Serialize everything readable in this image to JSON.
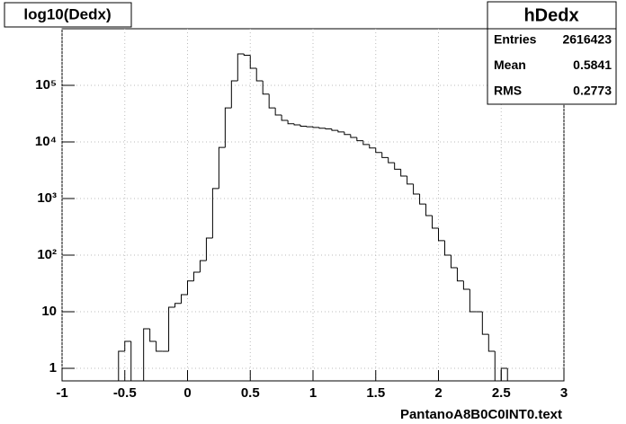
{
  "chart_data": {
    "type": "histogram",
    "title": "log10(Dedx)",
    "x_label": "PantanoA8B0C0INT0.text",
    "stats": {
      "name": "hDedx",
      "rows": [
        {
          "label": "Entries",
          "value": 2616423
        },
        {
          "label": "Mean",
          "value": 0.5841
        },
        {
          "label": "RMS",
          "value": 0.2773
        }
      ]
    },
    "bins": [
      -1,
      -0.95,
      -0.9,
      -0.85,
      -0.8,
      -0.75,
      -0.7,
      -0.65,
      -0.6,
      -0.55,
      -0.5,
      -0.45,
      -0.4,
      -0.35,
      -0.3,
      -0.25,
      -0.2,
      -0.15,
      -0.1,
      -0.05,
      0,
      0.05,
      0.1,
      0.15,
      0.2,
      0.25,
      0.3,
      0.35,
      0.4,
      0.45,
      0.5,
      0.55,
      0.6,
      0.65,
      0.7,
      0.75,
      0.8,
      0.85,
      0.9,
      0.95,
      1,
      1.05,
      1.1,
      1.15,
      1.2,
      1.25,
      1.3,
      1.35,
      1.4,
      1.45,
      1.5,
      1.55,
      1.6,
      1.65,
      1.7,
      1.75,
      1.8,
      1.85,
      1.9,
      1.95,
      2,
      2.05,
      2.1,
      2.15,
      2.2,
      2.25,
      2.3,
      2.35,
      2.4,
      2.45,
      2.5,
      2.55,
      2.6,
      2.65,
      2.7,
      2.75,
      2.8,
      2.85,
      2.9,
      2.95,
      3
    ],
    "values": [
      0,
      0,
      0,
      0,
      0,
      0,
      0,
      0,
      0,
      2,
      3,
      0,
      0,
      5,
      3,
      2,
      2,
      12,
      14,
      20,
      35,
      50,
      80,
      200,
      1500,
      8000,
      40000,
      120000,
      360000,
      340000,
      200000,
      120000,
      70000,
      40000,
      30000,
      24000,
      21000,
      20000,
      19000,
      18500,
      18000,
      17500,
      17000,
      16000,
      15000,
      13500,
      12000,
      10500,
      9000,
      7800,
      6500,
      5300,
      4300,
      3300,
      2500,
      1800,
      1200,
      800,
      500,
      300,
      180,
      100,
      60,
      35,
      25,
      10,
      10,
      4,
      2,
      0,
      1,
      0,
      0,
      0,
      0,
      0,
      0,
      0,
      0,
      0
    ],
    "color": "#000000",
    "xlim": [
      -1,
      3
    ],
    "xticks": [
      -1,
      -0.5,
      0,
      0.5,
      1,
      1.5,
      2,
      2.5,
      3
    ],
    "ylim": [
      0.6,
      1000000
    ],
    "yticks": [
      1,
      10,
      {
        "value": 100,
        "label": "10²"
      },
      {
        "value": 1000,
        "label": "10³"
      },
      {
        "value": 10000,
        "label": "10⁴"
      },
      {
        "value": 100000,
        "label": "10⁵"
      }
    ],
    "log_y": true,
    "grid": true
  }
}
